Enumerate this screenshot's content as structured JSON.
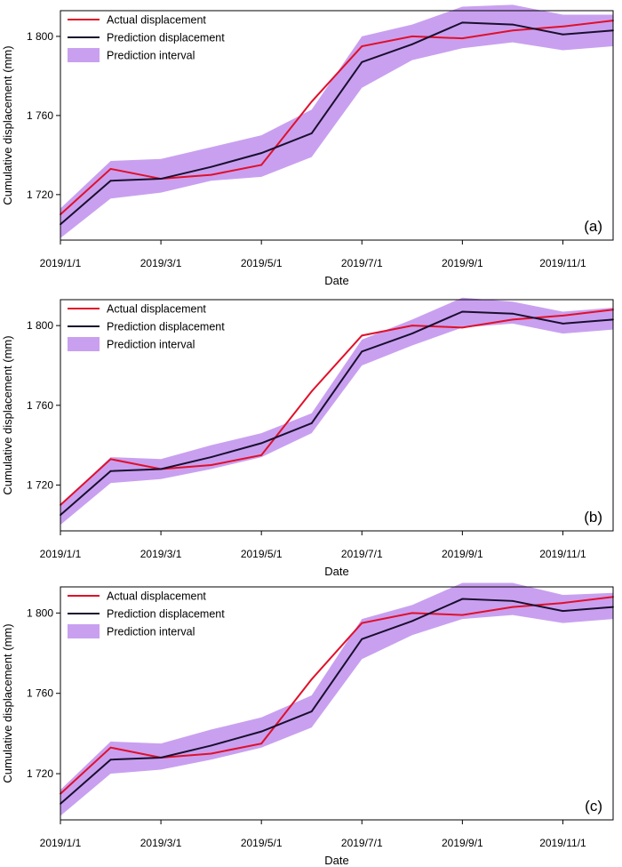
{
  "chart_data": [
    {
      "type": "line",
      "title": "",
      "panel_label": "(a)",
      "xlabel": "Date",
      "ylabel": "Cumulative displacement (mm)",
      "x": [
        "2019/1/1",
        "2019/2/1",
        "2019/3/1",
        "2019/4/1",
        "2019/5/1",
        "2019/6/1",
        "2019/7/1",
        "2019/8/1",
        "2019/9/1",
        "2019/10/1",
        "2019/11/1",
        "2019/12/1"
      ],
      "xticks": [
        "2019/1/1",
        "2019/3/1",
        "2019/5/1",
        "2019/7/1",
        "2019/9/1",
        "2019/11/1"
      ],
      "yticks": [
        "1 720",
        "1 760",
        "1 800"
      ],
      "ytick_values": [
        1720,
        1760,
        1800
      ],
      "ylim": [
        1697,
        1813
      ],
      "series": [
        {
          "name": "Actual displacement",
          "color": "#e0102a",
          "values": [
            1710,
            1733,
            1728,
            1730,
            1735,
            1767,
            1795,
            1800,
            1799,
            1803,
            1805,
            1808
          ]
        },
        {
          "name": "Prediction displacement",
          "color": "#1a0f2e",
          "values": [
            1705,
            1727,
            1728,
            1734,
            1741,
            1751,
            1787,
            1796,
            1807,
            1806,
            1801,
            1803
          ]
        }
      ],
      "interval": {
        "name": "Prediction interval",
        "color": "#c9a0f0",
        "lower": [
          1698,
          1718,
          1721,
          1727,
          1729,
          1739,
          1774,
          1788,
          1794,
          1797,
          1793,
          1795
        ],
        "upper": [
          1713,
          1737,
          1738,
          1744,
          1750,
          1763,
          1800,
          1806,
          1815,
          1816,
          1811,
          1811
        ]
      },
      "legend_position": "top-left",
      "grid": false
    },
    {
      "type": "line",
      "title": "",
      "panel_label": "(b)",
      "xlabel": "Date",
      "ylabel": "Cumulative displacement (mm)",
      "x": [
        "2019/1/1",
        "2019/2/1",
        "2019/3/1",
        "2019/4/1",
        "2019/5/1",
        "2019/6/1",
        "2019/7/1",
        "2019/8/1",
        "2019/9/1",
        "2019/10/1",
        "2019/11/1",
        "2019/12/1"
      ],
      "xticks": [
        "2019/1/1",
        "2019/3/1",
        "2019/5/1",
        "2019/7/1",
        "2019/9/1",
        "2019/11/1"
      ],
      "yticks": [
        "1 720",
        "1 760",
        "1 800"
      ],
      "ytick_values": [
        1720,
        1760,
        1800
      ],
      "ylim": [
        1697,
        1813
      ],
      "series": [
        {
          "name": "Actual displacement",
          "color": "#e0102a",
          "values": [
            1710,
            1733,
            1728,
            1730,
            1735,
            1767,
            1795,
            1800,
            1799,
            1803,
            1805,
            1808
          ]
        },
        {
          "name": "Prediction displacement",
          "color": "#1a0f2e",
          "values": [
            1705,
            1727,
            1728,
            1734,
            1741,
            1751,
            1787,
            1796,
            1807,
            1806,
            1801,
            1803
          ]
        }
      ],
      "interval": {
        "name": "Prediction interval",
        "color": "#c9a0f0",
        "lower": [
          1700,
          1721,
          1723,
          1728,
          1734,
          1746,
          1780,
          1790,
          1799,
          1801,
          1796,
          1798
        ],
        "upper": [
          1710,
          1734,
          1733,
          1740,
          1746,
          1756,
          1793,
          1803,
          1814,
          1812,
          1807,
          1809
        ]
      },
      "legend_position": "top-left",
      "grid": false
    },
    {
      "type": "line",
      "title": "",
      "panel_label": "(c)",
      "xlabel": "Date",
      "ylabel": "Cumulative displacement (mm)",
      "x": [
        "2019/1/1",
        "2019/2/1",
        "2019/3/1",
        "2019/4/1",
        "2019/5/1",
        "2019/6/1",
        "2019/7/1",
        "2019/8/1",
        "2019/9/1",
        "2019/10/1",
        "2019/11/1",
        "2019/12/1"
      ],
      "xticks": [
        "2019/1/1",
        "2019/3/1",
        "2019/5/1",
        "2019/7/1",
        "2019/9/1",
        "2019/11/1"
      ],
      "yticks": [
        "1 720",
        "1 760",
        "1 800"
      ],
      "ytick_values": [
        1720,
        1760,
        1800
      ],
      "ylim": [
        1697,
        1813
      ],
      "series": [
        {
          "name": "Actual displacement",
          "color": "#e0102a",
          "values": [
            1710,
            1733,
            1728,
            1730,
            1735,
            1767,
            1795,
            1800,
            1799,
            1803,
            1805,
            1808
          ]
        },
        {
          "name": "Prediction displacement",
          "color": "#1a0f2e",
          "values": [
            1705,
            1727,
            1728,
            1734,
            1741,
            1751,
            1787,
            1796,
            1807,
            1806,
            1801,
            1803
          ]
        }
      ],
      "interval": {
        "name": "Prediction interval",
        "color": "#c9a0f0",
        "lower": [
          1699,
          1720,
          1722,
          1727,
          1733,
          1743,
          1777,
          1789,
          1797,
          1799,
          1795,
          1797
        ],
        "upper": [
          1712,
          1736,
          1735,
          1742,
          1748,
          1759,
          1797,
          1804,
          1815,
          1815,
          1809,
          1810
        ]
      },
      "legend_position": "top-left",
      "grid": false
    }
  ]
}
